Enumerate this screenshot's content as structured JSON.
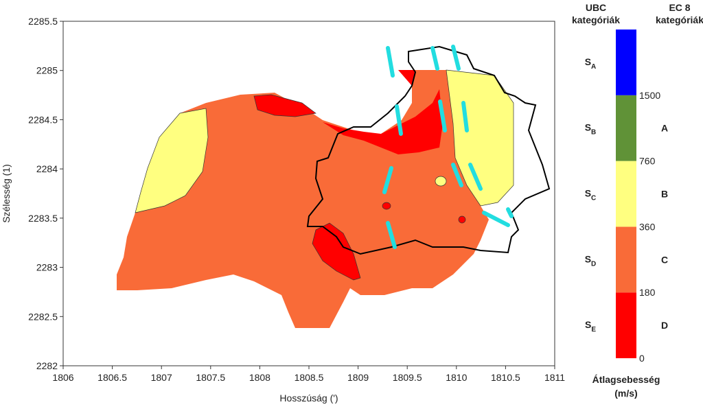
{
  "chart_data": {
    "type": "map",
    "x_label": "Hosszúság (')",
    "y_label": "Szélesség (1)",
    "xlim": [
      1806,
      1811
    ],
    "ylim": [
      2282,
      2285.5
    ],
    "xticks": [
      1806,
      1806.5,
      1807,
      1807.5,
      1808,
      1808.5,
      1809,
      1809.5,
      1810,
      1810.5,
      1811
    ],
    "yticks": [
      2282,
      2282.5,
      2283,
      2283.5,
      2284,
      2284.5,
      2285,
      2285.5
    ],
    "colorbar": {
      "title": "Átlagsebesség",
      "unit": "(m/s)",
      "levels": [
        0,
        180,
        360,
        760,
        1500
      ],
      "colors": [
        "#ff0000",
        "#f96b38",
        "#ffff80",
        "#609237",
        "#0000ff"
      ],
      "ubc_title": [
        "UBC",
        "kategóriák"
      ],
      "ubc_categories": [
        {
          "letter": "S",
          "sub": "A"
        },
        {
          "letter": "S",
          "sub": "B"
        },
        {
          "letter": "S",
          "sub": "C"
        },
        {
          "letter": "S",
          "sub": "D"
        },
        {
          "letter": "S",
          "sub": "E"
        }
      ],
      "ec8_title": [
        "EC 8",
        "kategóriák"
      ],
      "ec8_categories": [
        "A",
        "B",
        "C",
        "D"
      ]
    }
  }
}
